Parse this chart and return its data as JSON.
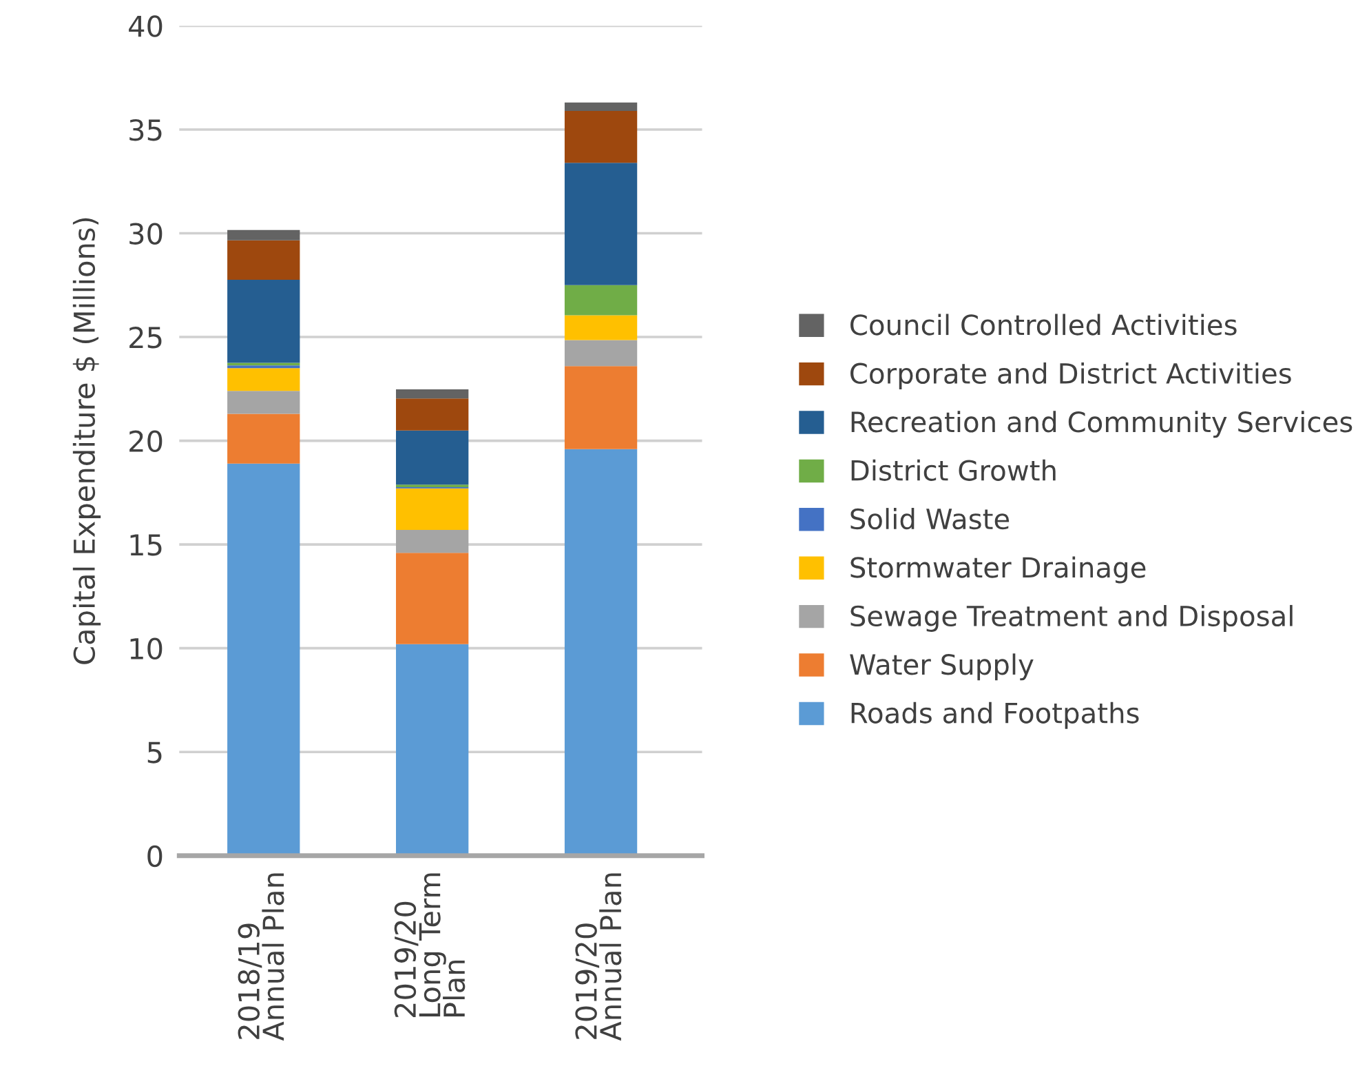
{
  "chart_data": {
    "type": "bar",
    "stacked": true,
    "ylabel": "Capital Expenditure $ (Millions)",
    "categories": [
      "2018/19\nAnnual Plan",
      "2019/20\nLong Term\nPlan",
      "2019/20\nAnnual Plan"
    ],
    "series": [
      {
        "name": "Roads and Footpaths",
        "color": "#5b9bd5",
        "values": [
          18.9,
          10.2,
          19.6
        ]
      },
      {
        "name": "Water Supply",
        "color": "#ed7d31",
        "values": [
          2.4,
          4.4,
          4.0
        ]
      },
      {
        "name": "Sewage Treatment and Disposal",
        "color": "#a5a5a5",
        "values": [
          1.1,
          1.1,
          1.25
        ]
      },
      {
        "name": "Stormwater Drainage",
        "color": "#ffc000",
        "values": [
          1.1,
          2.0,
          1.2
        ]
      },
      {
        "name": "Solid Waste",
        "color": "#4472c4",
        "values": [
          0.13,
          0.06,
          0
        ]
      },
      {
        "name": "District Growth",
        "color": "#70ad47",
        "values": [
          0.13,
          0.13,
          1.45
        ]
      },
      {
        "name": "Recreation and Community Services",
        "color": "#255e91",
        "values": [
          4.0,
          2.6,
          5.9
        ]
      },
      {
        "name": "Corporate and District Activities",
        "color": "#9e480e",
        "values": [
          1.9,
          1.55,
          2.5
        ]
      },
      {
        "name": "Council Controlled Activities",
        "color": "#636363",
        "values": [
          0.5,
          0.44,
          0.4
        ]
      }
    ],
    "ylim": [
      0,
      40
    ],
    "yticks": [
      0,
      5,
      10,
      15,
      20,
      25,
      30,
      35,
      40
    ],
    "grid": "y",
    "legend": "right"
  }
}
